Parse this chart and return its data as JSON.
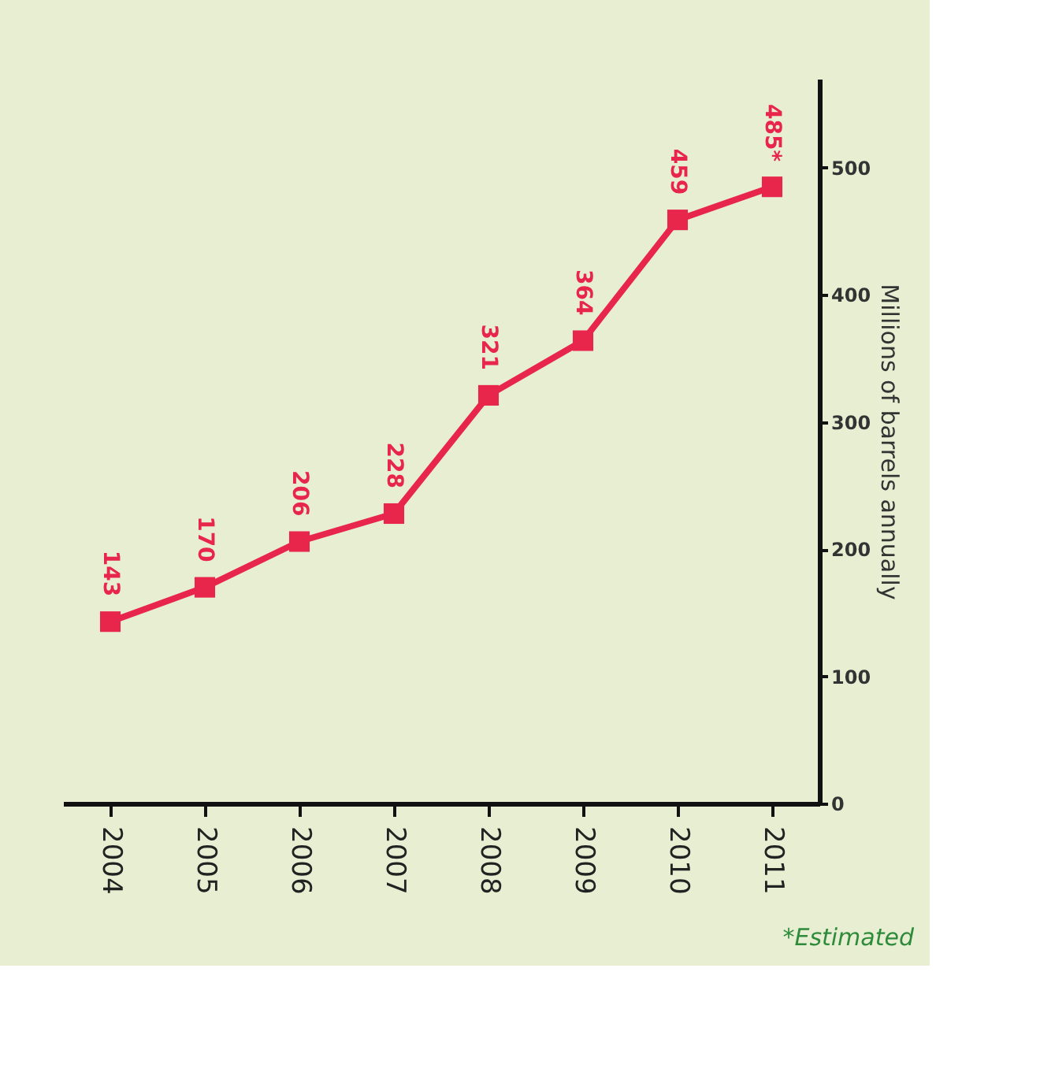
{
  "chart_data": {
    "type": "line",
    "categories": [
      "2004",
      "2005",
      "2006",
      "2007",
      "2008",
      "2009",
      "2010",
      "2011"
    ],
    "series": [
      {
        "color": "#e8254a",
        "values": [
          143,
          170,
          206,
          228,
          321,
          364,
          459,
          485
        ],
        "value_labels": [
          "143",
          "170",
          "206",
          "228",
          "321",
          "364",
          "459",
          "485*"
        ]
      }
    ],
    "ylabel": "Millions of barrels annually",
    "ylim": [
      0,
      570
    ],
    "yticks": [
      0,
      100,
      200,
      300,
      400,
      500
    ],
    "marker": "square",
    "grid": false,
    "annotations": [
      "*Estimated"
    ]
  }
}
